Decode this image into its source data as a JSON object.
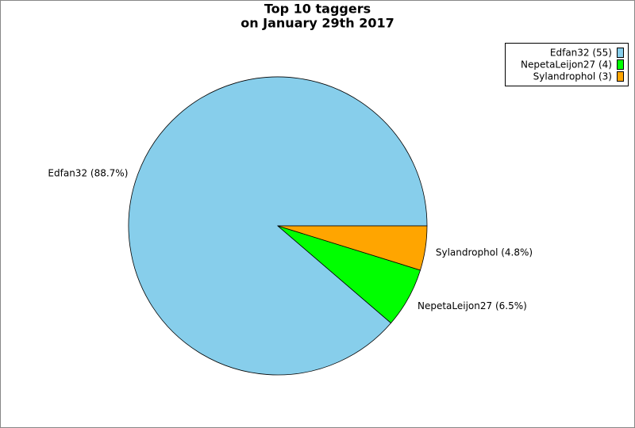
{
  "chart_data": {
    "type": "pie",
    "title": "Top 10 taggers",
    "subtitle": "on January 29th 2017",
    "categories": [
      "Edfan32 (55)",
      "NepetaLeijon27 (4)",
      "Sylandrophol (3)"
    ],
    "values": [
      88.7,
      6.5,
      4.8
    ],
    "value_labels": [
      "Edfan32 (88.7%)",
      "NepetaLeijon27 (6.5%)",
      "Sylandrophol (4.8%)"
    ],
    "colors": [
      "#87ceeb",
      "#00ff00",
      "#ffa500"
    ],
    "legend": "top-right"
  }
}
